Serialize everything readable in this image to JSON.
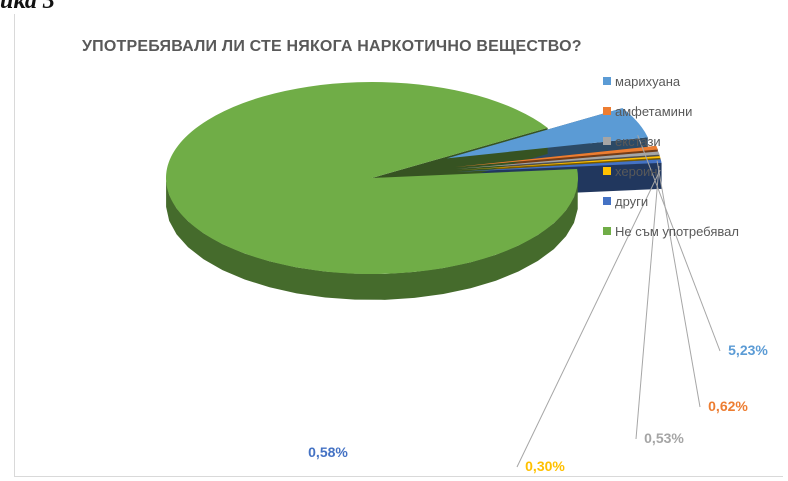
{
  "caption": "ика 3",
  "chart_data": {
    "type": "pie",
    "title": "УПОТРЕБЯВАЛИ ЛИ СТЕ НЯКОГА НАРКОТИЧНО ВЕЩЕСТВО?",
    "legend_position": "right",
    "slices": [
      {
        "name": "марихуана",
        "value": 5.23,
        "label": "5,23%",
        "color": "#5b9bd5"
      },
      {
        "name": "амфетамини",
        "value": 0.62,
        "label": "0,62%",
        "color": "#ed7d31"
      },
      {
        "name": "екстази",
        "value": 0.53,
        "label": "0,53%",
        "color": "#a5a5a5"
      },
      {
        "name": "хероин",
        "value": 0.3,
        "label": "0,30%",
        "color": "#ffc000"
      },
      {
        "name": "други",
        "value": 0.58,
        "label": "0,58%",
        "color": "#4472c4"
      },
      {
        "name": "Не съм употребявал",
        "value": 92.74,
        "label": "",
        "color": "#70ad47"
      }
    ]
  }
}
